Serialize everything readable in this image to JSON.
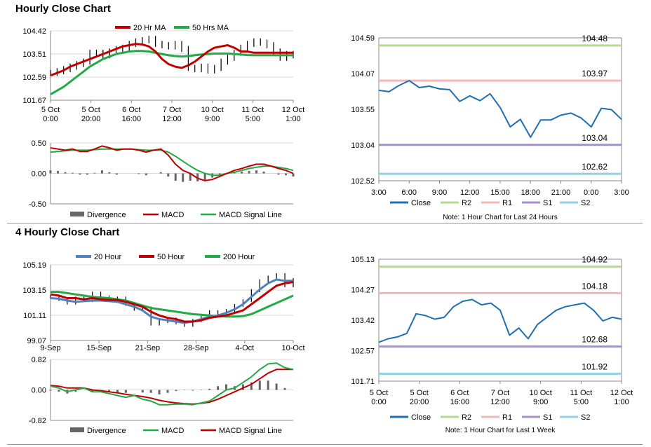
{
  "sections": [
    {
      "title": "Hourly Close Chart"
    },
    {
      "title": "4 Hourly Close Chart"
    }
  ],
  "chart_data": [
    {
      "id": "hourly_price",
      "type": "line",
      "legend": [
        "20 Hr MA",
        "50 Hrs MA"
      ],
      "colors": {
        "20 Hr MA": "#c00000",
        "50 Hrs MA": "#22aa44",
        "bars": "#000000"
      },
      "ylim": [
        101.67,
        104.42
      ],
      "yticks": [
        "104.42",
        "103.51",
        "102.59",
        "101.67"
      ],
      "xticks": [
        [
          "5 Oct",
          "0:00"
        ],
        [
          "5 Oct",
          "20:00"
        ],
        [
          "6 Oct",
          "16:00"
        ],
        [
          "7 Oct",
          "12:00"
        ],
        [
          "10 Oct",
          "9:00"
        ],
        [
          "11 Oct",
          "5:00"
        ],
        [
          "12 Oct",
          "1:00"
        ]
      ],
      "close": [
        102.75,
        102.82,
        102.9,
        103.0,
        103.1,
        103.2,
        103.55,
        103.55,
        103.45,
        103.6,
        103.7,
        103.75,
        103.9,
        104.0,
        104.05,
        104.1,
        103.9,
        103.85,
        103.8,
        103.9,
        103.7,
        102.95,
        102.9,
        103.0,
        102.85,
        102.95,
        103.2,
        103.35,
        103.55,
        103.75,
        103.9,
        104.0,
        103.95,
        103.85,
        103.6,
        103.35,
        103.5,
        103.45
      ],
      "ma20": [
        102.65,
        102.75,
        102.85,
        103.0,
        103.1,
        103.2,
        103.3,
        103.4,
        103.5,
        103.6,
        103.7,
        103.8,
        103.85,
        103.9,
        103.88,
        103.8,
        103.6,
        103.3,
        103.1,
        103.0,
        102.95,
        103.05,
        103.2,
        103.4,
        103.6,
        103.75,
        103.8,
        103.85,
        103.75,
        103.6,
        103.6,
        103.55,
        103.55,
        103.55,
        103.55,
        103.55,
        103.55,
        103.55
      ],
      "ma50": [
        101.9,
        102.05,
        102.2,
        102.4,
        102.6,
        102.8,
        103.0,
        103.15,
        103.3,
        103.4,
        103.5,
        103.55,
        103.6,
        103.62,
        103.62,
        103.6,
        103.55,
        103.5,
        103.45,
        103.42,
        103.4,
        103.42,
        103.45,
        103.48,
        103.5,
        103.52,
        103.52,
        103.52,
        103.5,
        103.48,
        103.46,
        103.45,
        103.45,
        103.45,
        103.45,
        103.45,
        103.45,
        103.45
      ]
    },
    {
      "id": "hourly_macd",
      "type": "line",
      "legend": [
        "Divergence",
        "MACD",
        "MACD Signal Line"
      ],
      "colors": {
        "Divergence": "#666666",
        "MACD": "#c00000",
        "MACD Signal Line": "#22aa44"
      },
      "ylim": [
        -0.5,
        0.5
      ],
      "yticks": [
        "0.50",
        "0.00",
        "-0.50"
      ],
      "macd": [
        0.42,
        0.4,
        0.38,
        0.4,
        0.36,
        0.36,
        0.4,
        0.45,
        0.42,
        0.38,
        0.4,
        0.4,
        0.38,
        0.35,
        0.38,
        0.4,
        0.3,
        0.15,
        0.05,
        0.0,
        -0.08,
        -0.12,
        -0.1,
        -0.05,
        0.0,
        0.05,
        0.08,
        0.12,
        0.15,
        0.15,
        0.12,
        0.08,
        0.05,
        0.0
      ],
      "signal": [
        0.35,
        0.36,
        0.37,
        0.38,
        0.38,
        0.38,
        0.39,
        0.4,
        0.4,
        0.4,
        0.4,
        0.4,
        0.39,
        0.38,
        0.38,
        0.38,
        0.35,
        0.28,
        0.2,
        0.12,
        0.05,
        0.0,
        -0.03,
        -0.03,
        0.0,
        0.02,
        0.05,
        0.08,
        0.1,
        0.12,
        0.12,
        0.1,
        0.08,
        0.05
      ],
      "divergence": [
        0.05,
        0.04,
        0.02,
        0.01,
        -0.02,
        -0.02,
        0.01,
        0.05,
        0.02,
        -0.02,
        0.0,
        0.0,
        -0.01,
        -0.03,
        0.0,
        0.02,
        -0.05,
        -0.12,
        -0.14,
        -0.12,
        -0.13,
        -0.12,
        -0.07,
        -0.02,
        0.0,
        0.03,
        0.03,
        0.04,
        0.05,
        0.03,
        0.0,
        -0.02,
        -0.03,
        -0.05
      ]
    },
    {
      "id": "hourly_sr",
      "type": "line",
      "legend": [
        "Close",
        "R2",
        "R1",
        "S1",
        "S2"
      ],
      "colors": {
        "Close": "#1f6fb2",
        "R2": "#b8d98a",
        "R1": "#f2b8b5",
        "S1": "#a88fcf",
        "S2": "#93d0e0"
      },
      "ylim": [
        102.52,
        104.59
      ],
      "yticks": [
        "104.59",
        "104.07",
        "103.55",
        "103.04",
        "102.52"
      ],
      "xticks": [
        "3:00",
        "6:00",
        "9:00",
        "12:00",
        "15:00",
        "18:00",
        "21:00",
        "0:00",
        "3:00"
      ],
      "levels": {
        "R2": 104.48,
        "R1": 103.97,
        "S1": 103.04,
        "S2": 102.62
      },
      "level_labels": {
        "R2": "104.48",
        "R1": "103.97",
        "S1": "103.04",
        "S2": "102.62"
      },
      "close": [
        103.83,
        103.81,
        103.9,
        103.97,
        103.87,
        103.89,
        103.85,
        103.84,
        103.67,
        103.75,
        103.68,
        103.78,
        103.58,
        103.3,
        103.41,
        103.15,
        103.4,
        103.4,
        103.47,
        103.5,
        103.43,
        103.3,
        103.57,
        103.55,
        103.41
      ],
      "note": "Note: 1 Hour Chart for Last 24 Hours"
    },
    {
      "id": "fourhourly_price",
      "type": "line",
      "legend": [
        "20 Hour",
        "50 Hour",
        "200 Hour"
      ],
      "colors": {
        "20 Hour": "#4f81bd",
        "50 Hour": "#c00000",
        "200 Hour": "#22aa44",
        "bars": "#000000"
      },
      "ylim": [
        99.07,
        105.19
      ],
      "yticks": [
        "105.19",
        "103.15",
        "101.11",
        "99.07"
      ],
      "xticks": [
        "9-Sep",
        "15-Sep",
        "21-Sep",
        "28-Sep",
        "4-Oct",
        "10-Oct"
      ],
      "close": [
        102.6,
        102.4,
        102.1,
        102.5,
        102.3,
        102.9,
        102.6,
        102.4,
        102.5,
        102.0,
        101.6,
        101.7,
        100.4,
        100.6,
        100.8,
        100.5,
        100.3,
        100.7,
        101.0,
        101.4,
        101.2,
        101.5,
        101.9,
        102.3,
        103.1,
        103.9,
        104.2,
        104.4,
        103.5,
        104.0
      ],
      "ma20": [
        102.5,
        102.45,
        102.3,
        102.2,
        102.25,
        102.3,
        102.3,
        102.25,
        102.2,
        102.0,
        101.8,
        101.5,
        101.0,
        100.8,
        100.7,
        100.6,
        100.5,
        100.6,
        100.8,
        101.0,
        101.1,
        101.3,
        101.6,
        102.0,
        102.6,
        103.2,
        103.7,
        104.0,
        103.9,
        103.9
      ],
      "ma50": [
        102.8,
        102.7,
        102.5,
        102.5,
        102.4,
        102.5,
        102.4,
        102.35,
        102.35,
        102.2,
        102.0,
        101.8,
        101.4,
        101.1,
        100.9,
        100.8,
        100.6,
        100.6,
        100.7,
        100.9,
        101.0,
        101.1,
        101.3,
        101.5,
        102.0,
        102.5,
        103.0,
        103.5,
        103.7,
        103.8
      ],
      "ma200": [
        103.0,
        103.0,
        102.9,
        102.8,
        102.7,
        102.6,
        102.55,
        102.5,
        102.4,
        102.3,
        102.1,
        101.9,
        101.7,
        101.6,
        101.5,
        101.4,
        101.3,
        101.2,
        101.15,
        101.1,
        101.05,
        101.0,
        101.0,
        101.05,
        101.2,
        101.5,
        101.8,
        102.1,
        102.4,
        102.7
      ]
    },
    {
      "id": "fourhourly_macd",
      "type": "line",
      "legend": [
        "Divergence",
        "MACD",
        "MACD Signal Line"
      ],
      "colors": {
        "Divergence": "#666666",
        "MACD": "#22aa44",
        "MACD Signal Line": "#c00000"
      },
      "ylim": [
        -0.82,
        0.82
      ],
      "yticks": [
        "0.82",
        "0.00",
        "-0.82"
      ],
      "macd": [
        0.1,
        0.05,
        -0.05,
        0.0,
        0.05,
        -0.05,
        -0.05,
        -0.1,
        -0.15,
        -0.2,
        -0.15,
        -0.25,
        -0.3,
        -0.4,
        -0.4,
        -0.38,
        -0.38,
        -0.4,
        -0.35,
        -0.3,
        -0.15,
        0.0,
        0.05,
        0.2,
        0.35,
        0.55,
        0.7,
        0.72,
        0.6,
        0.55
      ],
      "signal": [
        0.12,
        0.1,
        0.05,
        0.05,
        0.05,
        0.0,
        -0.02,
        -0.05,
        -0.08,
        -0.12,
        -0.15,
        -0.18,
        -0.22,
        -0.28,
        -0.32,
        -0.35,
        -0.37,
        -0.38,
        -0.36,
        -0.33,
        -0.25,
        -0.15,
        -0.05,
        0.05,
        0.15,
        0.3,
        0.45,
        0.55,
        0.55,
        0.55
      ],
      "divergence": [
        -0.02,
        -0.05,
        -0.1,
        -0.05,
        0.0,
        -0.05,
        -0.03,
        -0.05,
        -0.07,
        -0.08,
        0.0,
        -0.07,
        -0.08,
        -0.12,
        -0.08,
        -0.03,
        -0.01,
        -0.02,
        0.01,
        0.03,
        0.1,
        0.15,
        0.1,
        0.15,
        0.2,
        0.25,
        0.25,
        0.17,
        0.05,
        0.0
      ]
    },
    {
      "id": "fourhourly_sr",
      "type": "line",
      "legend": [
        "Close",
        "R2",
        "R1",
        "S1",
        "S2"
      ],
      "colors": {
        "Close": "#1f6fb2",
        "R2": "#b8d98a",
        "R1": "#f2b8b5",
        "S1": "#a88fcf",
        "S2": "#93d0e0"
      },
      "ylim": [
        101.71,
        105.13
      ],
      "yticks": [
        "105.13",
        "104.27",
        "103.42",
        "102.57",
        "101.71"
      ],
      "xticks": [
        [
          "5 Oct",
          "0:00"
        ],
        [
          "5 Oct",
          "20:00"
        ],
        [
          "6 Oct",
          "16:00"
        ],
        [
          "7 Oct",
          "12:00"
        ],
        [
          "10 Oct",
          "9:00"
        ],
        [
          "11 Oct",
          "5:00"
        ],
        [
          "12 Oct",
          "1:00"
        ]
      ],
      "levels": {
        "R2": 104.92,
        "R1": 104.18,
        "S1": 102.68,
        "S2": 101.92
      },
      "level_labels": {
        "R2": "104.92",
        "R1": "104.18",
        "S1": "102.68",
        "S2": "101.92"
      },
      "close": [
        102.8,
        102.9,
        102.95,
        103.05,
        103.6,
        103.55,
        103.45,
        103.5,
        103.8,
        103.95,
        104.0,
        103.85,
        103.9,
        103.7,
        103.0,
        103.2,
        102.9,
        103.3,
        103.5,
        103.7,
        103.8,
        103.85,
        103.9,
        103.7,
        103.4,
        103.5,
        103.45
      ],
      "note": "Note: 1 Hour Chart for Last 1 Week"
    }
  ]
}
